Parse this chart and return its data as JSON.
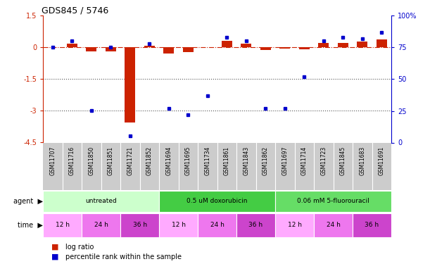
{
  "title": "GDS845 / 5746",
  "samples": [
    "GSM11707",
    "GSM11716",
    "GSM11850",
    "GSM11851",
    "GSM11721",
    "GSM11852",
    "GSM11694",
    "GSM11695",
    "GSM11734",
    "GSM11861",
    "GSM11843",
    "GSM11862",
    "GSM11697",
    "GSM11714",
    "GSM11723",
    "GSM11845",
    "GSM11683",
    "GSM11691"
  ],
  "log_ratio": [
    0.0,
    0.18,
    -0.2,
    -0.18,
    -3.55,
    0.08,
    -0.3,
    -0.22,
    0.0,
    0.32,
    0.18,
    -0.12,
    -0.06,
    -0.07,
    0.22,
    0.22,
    0.28,
    0.38
  ],
  "percentile": [
    75,
    80,
    25,
    75,
    5,
    78,
    27,
    22,
    37,
    83,
    80,
    27,
    27,
    52,
    80,
    83,
    82,
    87
  ],
  "agents": [
    {
      "label": "untreated",
      "start": 0,
      "end": 6,
      "color": "#ccffcc"
    },
    {
      "label": "0.5 uM doxorubicin",
      "start": 6,
      "end": 12,
      "color": "#44cc44"
    },
    {
      "label": "0.06 mM 5-fluorouracil",
      "start": 12,
      "end": 18,
      "color": "#66dd66"
    }
  ],
  "times": [
    {
      "label": "12 h",
      "start": 0,
      "end": 2,
      "color": "#ffaaff"
    },
    {
      "label": "24 h",
      "start": 2,
      "end": 4,
      "color": "#ee77ee"
    },
    {
      "label": "36 h",
      "start": 4,
      "end": 6,
      "color": "#cc44cc"
    },
    {
      "label": "12 h",
      "start": 6,
      "end": 8,
      "color": "#ffaaff"
    },
    {
      "label": "24 h",
      "start": 8,
      "end": 10,
      "color": "#ee77ee"
    },
    {
      "label": "36 h",
      "start": 10,
      "end": 12,
      "color": "#cc44cc"
    },
    {
      "label": "12 h",
      "start": 12,
      "end": 14,
      "color": "#ffaaff"
    },
    {
      "label": "24 h",
      "start": 14,
      "end": 16,
      "color": "#ee77ee"
    },
    {
      "label": "36 h",
      "start": 16,
      "end": 18,
      "color": "#cc44cc"
    }
  ],
  "ylim_left": [
    -4.5,
    1.5
  ],
  "ylim_right": [
    0,
    100
  ],
  "yticks_left": [
    1.5,
    0,
    -1.5,
    -3.0,
    -4.5
  ],
  "yticks_right": [
    100,
    75,
    50,
    25,
    0
  ],
  "bar_color": "#cc2200",
  "dot_color": "#0000cc",
  "hline_color": "#cc2200",
  "dotted_line_color": "#555555",
  "zero_line_y": 0,
  "dotted_lines": [
    -1.5,
    -3.0
  ],
  "bar_width": 0.55,
  "sample_bg_color": "#cccccc",
  "n_samples": 18
}
